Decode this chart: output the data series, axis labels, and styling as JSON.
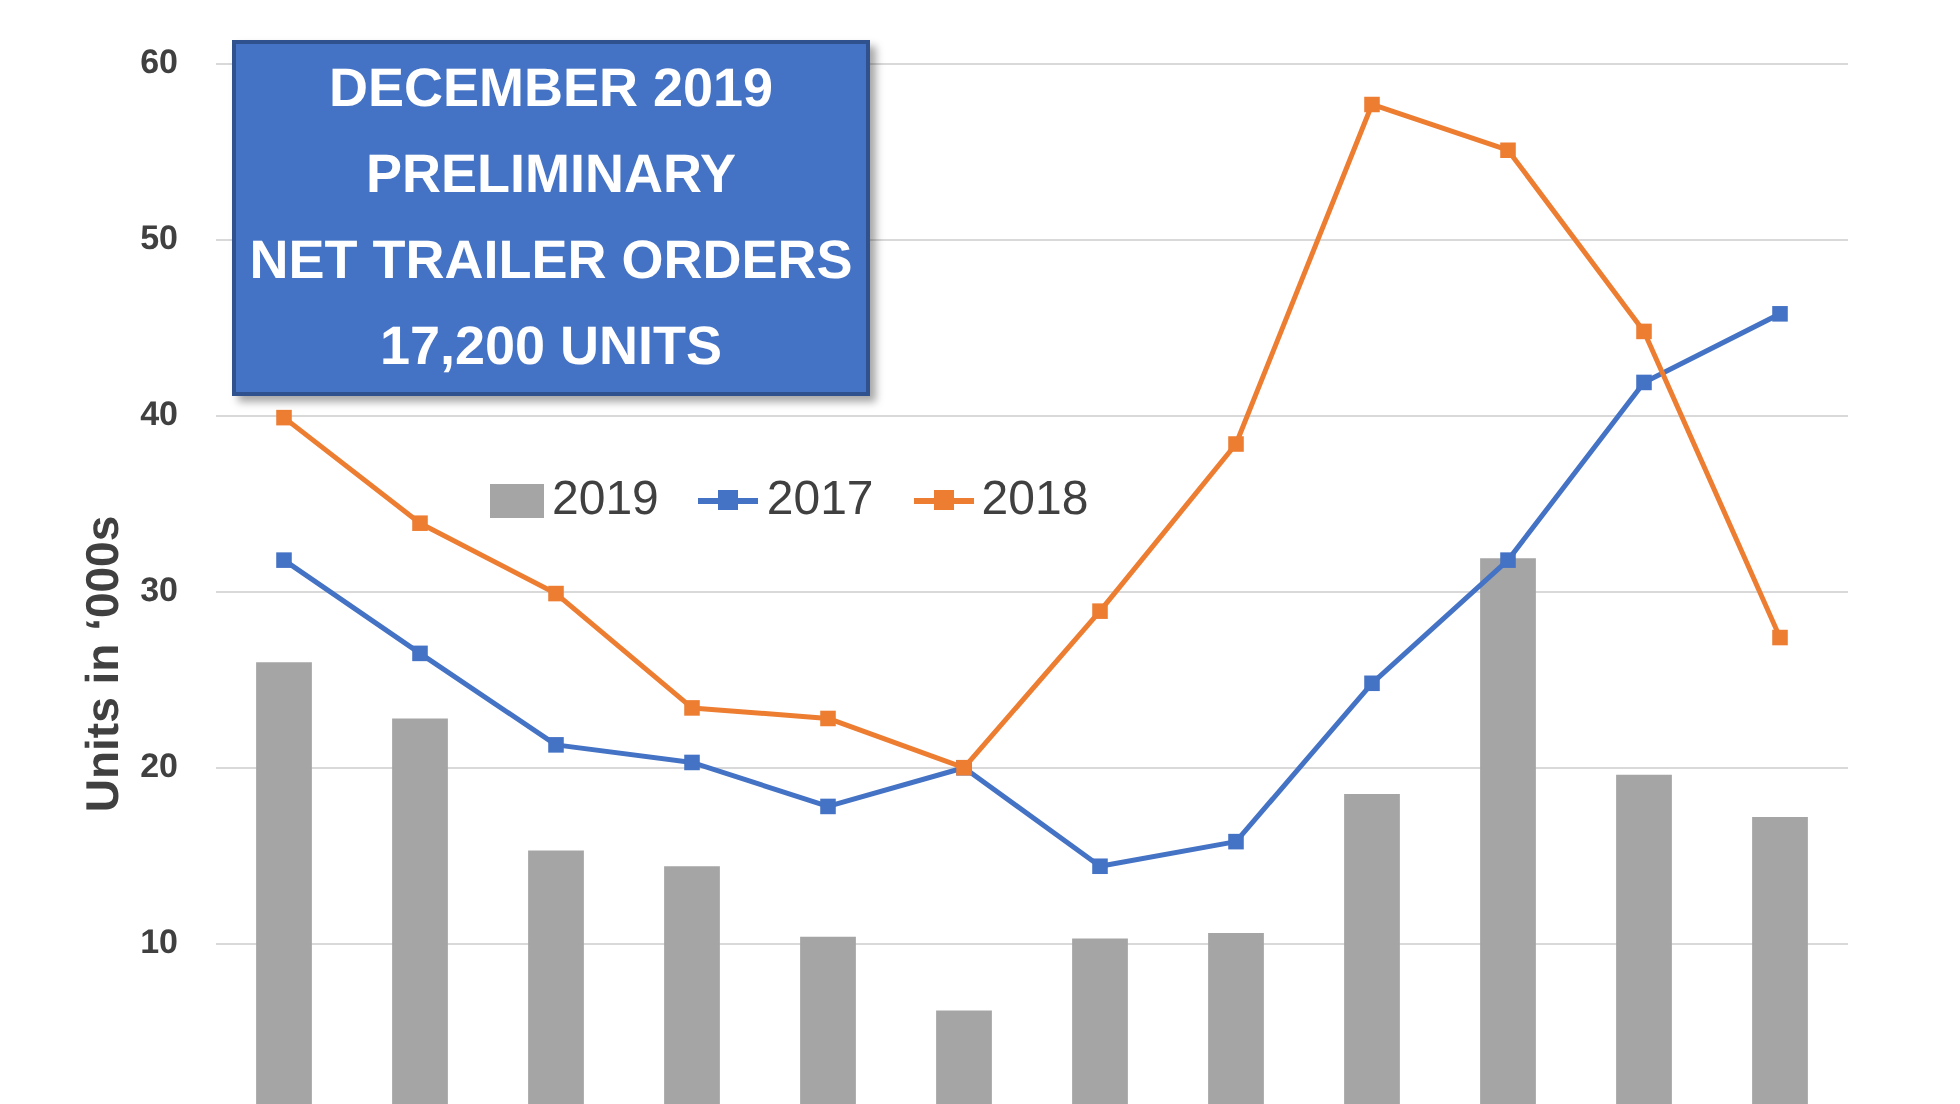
{
  "chart_data": {
    "type": "bar",
    "title": "DECEMBER 2019\nPRELIMINARY\nNET TRAILER ORDERS\n17,200 UNITS",
    "ylabel": "Units in ‘000s",
    "categories": [
      null,
      null,
      null,
      null,
      null,
      null,
      null,
      null,
      null,
      null,
      null,
      null
    ],
    "series": [
      {
        "name": "2019",
        "color": "#a5a5a5",
        "values": [
          26.0,
          22.8,
          15.3,
          14.4,
          10.4,
          6.2,
          10.3,
          10.6,
          18.5,
          31.9,
          19.6,
          17.2
        ]
      },
      {
        "name": "2017",
        "type": "line",
        "color": "#4472c4",
        "values": [
          31.8,
          26.5,
          21.3,
          20.3,
          17.8,
          20.0,
          14.4,
          15.8,
          24.8,
          31.8,
          41.9,
          45.8
        ]
      },
      {
        "name": "2018",
        "type": "line",
        "color": "#ed7d31",
        "values": [
          39.9,
          33.9,
          29.9,
          23.4,
          22.8,
          20.0,
          28.9,
          38.4,
          57.7,
          55.1,
          44.8,
          27.4
        ]
      }
    ],
    "ylim": [
      0,
      60
    ],
    "yticks": [
      10,
      20,
      30,
      40,
      50,
      60
    ],
    "grid": "y",
    "legend": "top left",
    "tick_labels": "y",
    "marker": "square"
  }
}
